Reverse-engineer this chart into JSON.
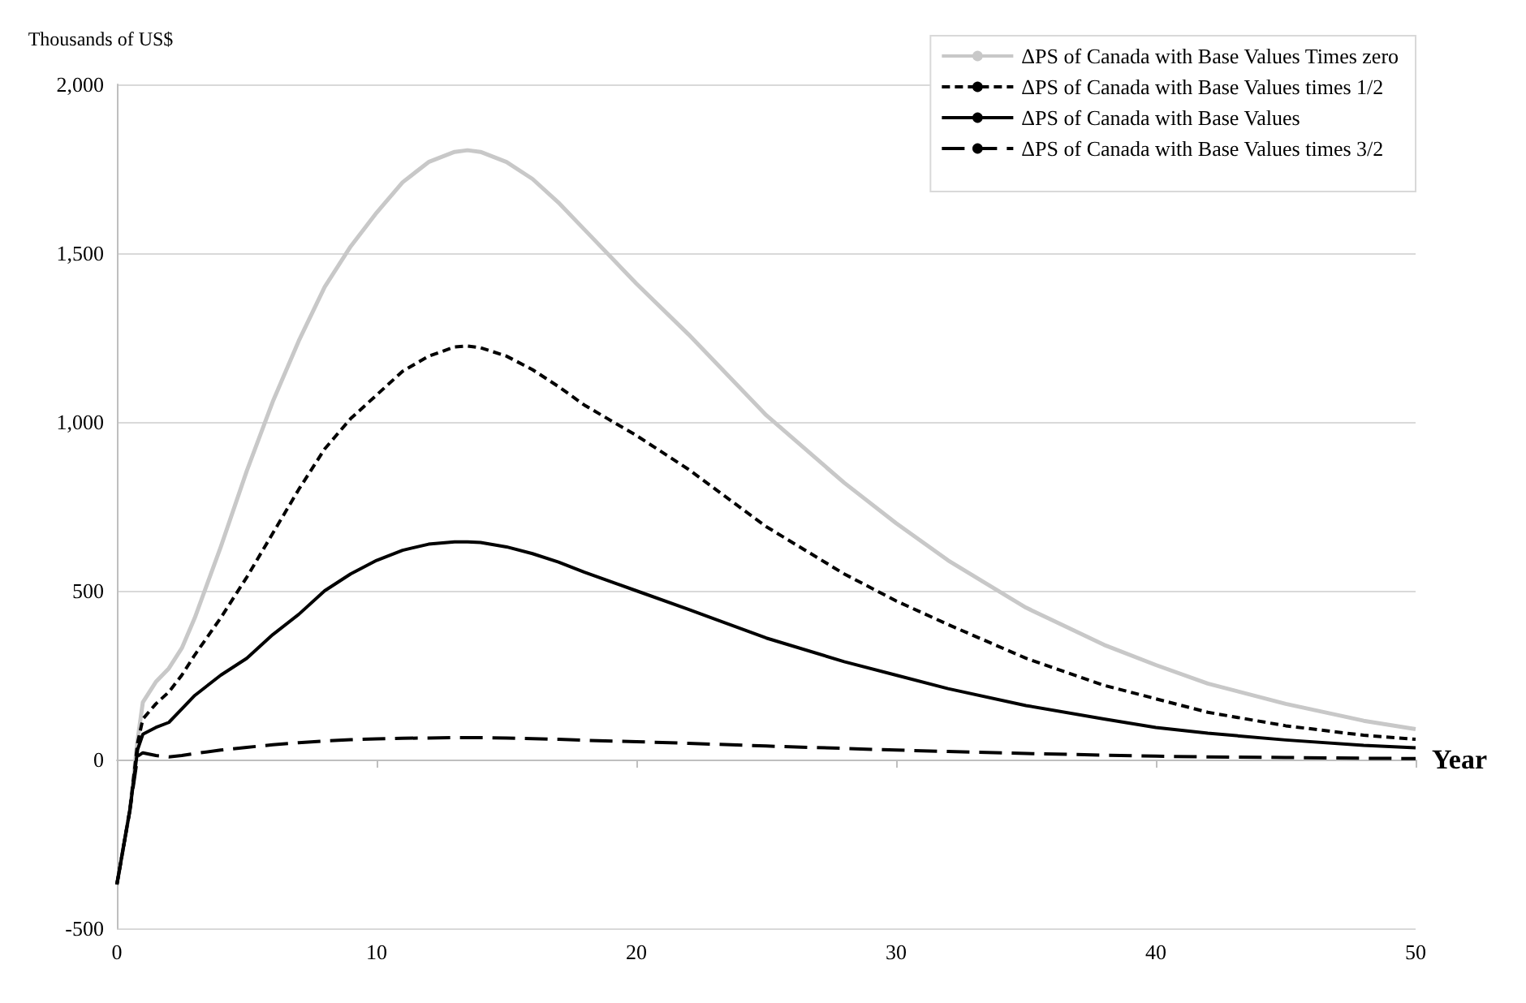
{
  "chart_data": {
    "type": "line",
    "xlabel": "Year",
    "ylabel": "Thousands of US$",
    "x": [
      0,
      0.5,
      0.8,
      1,
      1.5,
      2,
      2.5,
      3,
      4,
      5,
      6,
      7,
      8,
      9,
      10,
      11,
      12,
      13,
      13.5,
      14,
      15,
      16,
      17,
      18,
      20,
      22,
      25,
      28,
      30,
      32,
      35,
      38,
      40,
      42,
      45,
      48,
      50
    ],
    "series": [
      {
        "name": "ΔPS of Canada with Base Values Times zero",
        "color": "#c8c8c8",
        "line_style": "solid",
        "values": [
          -370,
          -150,
          60,
          170,
          230,
          270,
          330,
          420,
          630,
          855,
          1060,
          1240,
          1400,
          1520,
          1620,
          1710,
          1770,
          1800,
          1805,
          1800,
          1770,
          1720,
          1650,
          1570,
          1410,
          1260,
          1020,
          820,
          700,
          590,
          450,
          340,
          280,
          225,
          165,
          115,
          90
        ]
      },
      {
        "name": "ΔPS of Canada with Base Values times 1/2",
        "color": "#000000",
        "line_style": "dashed",
        "values": [
          -370,
          -150,
          50,
          120,
          165,
          200,
          250,
          310,
          420,
          540,
          670,
          800,
          920,
          1010,
          1080,
          1150,
          1195,
          1222,
          1225,
          1220,
          1195,
          1155,
          1105,
          1050,
          960,
          860,
          690,
          550,
          470,
          400,
          300,
          220,
          180,
          140,
          100,
          72,
          60
        ]
      },
      {
        "name": "ΔPS of Canada with Base Values",
        "color": "#000000",
        "line_style": "solid",
        "values": [
          -370,
          -150,
          30,
          75,
          95,
          110,
          150,
          190,
          250,
          300,
          370,
          430,
          500,
          550,
          590,
          620,
          638,
          645,
          645,
          643,
          630,
          610,
          585,
          555,
          500,
          445,
          360,
          290,
          250,
          210,
          160,
          120,
          95,
          78,
          58,
          42,
          35
        ]
      },
      {
        "name": "ΔPS of Canada with Base Values times 3/2",
        "color": "#000000",
        "line_style": "long-dash",
        "values": [
          -370,
          -150,
          10,
          20,
          12,
          8,
          12,
          18,
          28,
          36,
          44,
          50,
          55,
          59,
          61,
          63,
          64,
          65,
          65,
          65,
          64,
          62,
          60,
          57,
          53,
          48,
          40,
          33,
          28,
          24,
          18,
          13,
          10,
          8,
          6,
          4,
          3
        ]
      }
    ],
    "xlim": [
      0,
      50
    ],
    "xticks": [
      0,
      10,
      20,
      30,
      40,
      50
    ],
    "ylim": [
      -500,
      2000
    ],
    "yticks": [
      {
        "value": -500,
        "label": "-500"
      },
      0,
      500,
      {
        "value": 1000,
        "label": "1,000"
      },
      {
        "value": 1500,
        "label": "1,500"
      },
      {
        "value": 2000,
        "label": "2,000"
      }
    ],
    "grid": "y",
    "legend": "top right",
    "marker": "none"
  }
}
